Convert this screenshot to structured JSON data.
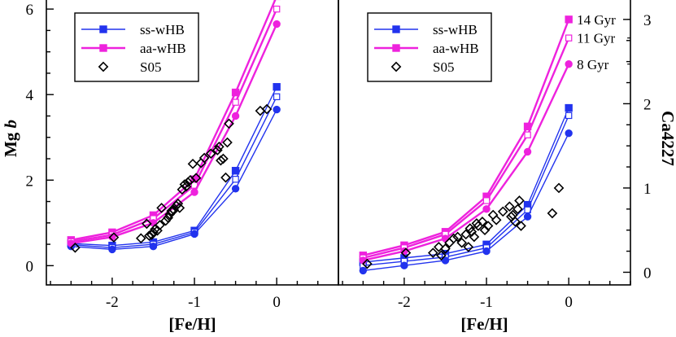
{
  "chart_data": [
    {
      "type": "line",
      "panel": "left",
      "xlabel": "[Fe/H]",
      "ylabel": "Mg b",
      "ylabel_plain": "Mg ",
      "ylabel_italic": "b",
      "xlim": [
        -2.8,
        0.75
      ],
      "ylim": [
        -0.45,
        6.25
      ],
      "xticks": [
        -2,
        -1,
        0
      ],
      "xtick_labels": [
        "-2",
        "-1",
        "0"
      ],
      "yticks": [
        0,
        2,
        4,
        6
      ],
      "ytick_labels": [
        "0",
        "2",
        "4",
        "6"
      ],
      "grid": false,
      "legend_position": "top-left",
      "legend": [
        "ss-wHB",
        "aa-wHB",
        "S05"
      ],
      "series": [
        {
          "name": "ss-wHB",
          "age": "14 Gyr",
          "color": "#2233ee",
          "marker": "filled-square",
          "x": [
            -2.5,
            -2.0,
            -1.5,
            -1.0,
            -0.5,
            0.0
          ],
          "y": [
            0.52,
            0.47,
            0.55,
            0.82,
            2.22,
            4.18
          ]
        },
        {
          "name": "ss-wHB",
          "age": "11 Gyr",
          "color": "#2233ee",
          "marker": "open-square",
          "x": [
            -2.5,
            -2.0,
            -1.5,
            -1.0,
            -0.5,
            0.0
          ],
          "y": [
            0.49,
            0.42,
            0.5,
            0.78,
            2.02,
            3.95
          ]
        },
        {
          "name": "ss-wHB",
          "age": "8 Gyr",
          "color": "#2233ee",
          "marker": "filled-circle",
          "x": [
            -2.5,
            -2.0,
            -1.5,
            -1.0,
            -0.5,
            0.0
          ],
          "y": [
            0.45,
            0.38,
            0.45,
            0.74,
            1.8,
            3.65
          ]
        },
        {
          "name": "aa-wHB",
          "age": "14 Gyr",
          "color": "#ee22dd",
          "marker": "filled-square",
          "x": [
            -2.5,
            -2.0,
            -1.5,
            -1.0,
            -0.5,
            0.0
          ],
          "y": [
            0.6,
            0.78,
            1.18,
            2.02,
            4.05,
            6.3
          ]
        },
        {
          "name": "aa-wHB",
          "age": "11 Gyr",
          "color": "#ee22dd",
          "marker": "open-square",
          "x": [
            -2.5,
            -2.0,
            -1.5,
            -1.0,
            -0.5,
            0.0
          ],
          "y": [
            0.56,
            0.72,
            1.1,
            1.88,
            3.82,
            6.0
          ]
        },
        {
          "name": "aa-wHB",
          "age": "8 Gyr",
          "color": "#ee22dd",
          "marker": "filled-circle",
          "x": [
            -2.5,
            -2.0,
            -1.5,
            -1.0,
            -0.5,
            0.0
          ],
          "y": [
            0.52,
            0.67,
            1.0,
            1.72,
            3.5,
            5.65
          ]
        }
      ],
      "observed": {
        "name": "S05",
        "marker": "open-diamond",
        "color": "#000000",
        "x": [
          -2.45,
          -1.98,
          -1.65,
          -1.58,
          -1.55,
          -1.52,
          -1.5,
          -1.48,
          -1.45,
          -1.42,
          -1.4,
          -1.35,
          -1.32,
          -1.3,
          -1.28,
          -1.25,
          -1.22,
          -1.2,
          -1.18,
          -1.15,
          -1.12,
          -1.1,
          -1.08,
          -1.05,
          -1.02,
          -0.98,
          -0.92,
          -0.88,
          -0.8,
          -0.72,
          -0.7,
          -0.68,
          -0.65,
          -0.62,
          -0.6,
          -0.58,
          -0.2,
          -0.12
        ],
        "y": [
          0.42,
          0.66,
          0.64,
          0.98,
          0.7,
          0.72,
          0.78,
          0.85,
          0.82,
          0.95,
          1.35,
          1.05,
          1.12,
          1.2,
          1.28,
          1.3,
          1.4,
          1.45,
          1.35,
          1.78,
          1.9,
          1.85,
          1.95,
          2.0,
          2.38,
          2.05,
          2.4,
          2.52,
          2.62,
          2.7,
          2.78,
          2.46,
          2.5,
          2.06,
          2.88,
          3.32,
          3.62,
          3.66
        ]
      }
    },
    {
      "type": "line",
      "panel": "right",
      "xlabel": "[Fe/H]",
      "ylabel": "Ca4227",
      "xlim": [
        -2.8,
        0.75
      ],
      "ylim": [
        -0.15,
        3.25
      ],
      "xticks": [
        -2,
        -1,
        0
      ],
      "xtick_labels": [
        "-2",
        "-1",
        "0"
      ],
      "yticks": [
        0,
        1,
        2,
        3
      ],
      "ytick_labels": [
        "0",
        "1",
        "2",
        "3"
      ],
      "grid": false,
      "legend_position": "top-left",
      "legend": [
        "ss-wHB",
        "aa-wHB",
        "S05"
      ],
      "age_labels": [
        "14 Gyr",
        "11 Gyr",
        "8 Gyr"
      ],
      "series": [
        {
          "name": "ss-wHB",
          "age": "14 Gyr",
          "color": "#2233ee",
          "marker": "filled-square",
          "x": [
            -2.5,
            -2.0,
            -1.5,
            -1.0,
            -0.5,
            0.0
          ],
          "y": [
            0.12,
            0.17,
            0.22,
            0.33,
            0.8,
            1.95
          ]
        },
        {
          "name": "ss-wHB",
          "age": "11 Gyr",
          "color": "#2233ee",
          "marker": "open-square",
          "x": [
            -2.5,
            -2.0,
            -1.5,
            -1.0,
            -0.5,
            0.0
          ],
          "y": [
            0.08,
            0.13,
            0.18,
            0.29,
            0.74,
            1.86
          ]
        },
        {
          "name": "ss-wHB",
          "age": "8 Gyr",
          "color": "#2233ee",
          "marker": "filled-circle",
          "x": [
            -2.5,
            -2.0,
            -1.5,
            -1.0,
            -0.5,
            0.0
          ],
          "y": [
            0.02,
            0.08,
            0.14,
            0.25,
            0.66,
            1.65
          ]
        },
        {
          "name": "aa-wHB",
          "age": "14 Gyr",
          "color": "#ee22dd",
          "marker": "filled-square",
          "x": [
            -2.5,
            -2.0,
            -1.5,
            -1.0,
            -0.5,
            0.0
          ],
          "y": [
            0.2,
            0.32,
            0.48,
            0.9,
            1.73,
            3.0
          ]
        },
        {
          "name": "aa-wHB",
          "age": "11 Gyr",
          "color": "#ee22dd",
          "marker": "open-square",
          "x": [
            -2.5,
            -2.0,
            -1.5,
            -1.0,
            -0.5,
            0.0
          ],
          "y": [
            0.17,
            0.29,
            0.45,
            0.85,
            1.63,
            2.78
          ]
        },
        {
          "name": "aa-wHB",
          "age": "8 Gyr",
          "color": "#ee22dd",
          "marker": "filled-circle",
          "x": [
            -2.5,
            -2.0,
            -1.5,
            -1.0,
            -0.5,
            0.0
          ],
          "y": [
            0.14,
            0.25,
            0.4,
            0.75,
            1.43,
            2.47
          ]
        }
      ],
      "observed": {
        "name": "S05",
        "marker": "open-diamond",
        "color": "#000000",
        "x": [
          -2.45,
          -1.98,
          -1.65,
          -1.58,
          -1.55,
          -1.5,
          -1.45,
          -1.4,
          -1.35,
          -1.3,
          -1.25,
          -1.22,
          -1.2,
          -1.18,
          -1.15,
          -1.12,
          -1.1,
          -1.05,
          -1.02,
          -0.98,
          -0.92,
          -0.88,
          -0.8,
          -0.72,
          -0.7,
          -0.68,
          -0.65,
          -0.62,
          -0.6,
          -0.58,
          -0.2,
          -0.12
        ],
        "y": [
          0.1,
          0.23,
          0.23,
          0.3,
          0.2,
          0.28,
          0.35,
          0.4,
          0.42,
          0.35,
          0.45,
          0.3,
          0.52,
          0.48,
          0.42,
          0.58,
          0.55,
          0.6,
          0.5,
          0.55,
          0.68,
          0.62,
          0.72,
          0.78,
          0.66,
          0.68,
          0.6,
          0.75,
          0.85,
          0.55,
          0.7,
          1.0
        ]
      }
    }
  ]
}
